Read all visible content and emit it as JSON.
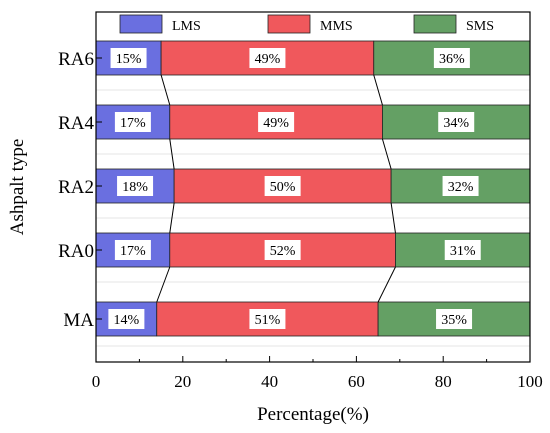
{
  "chart_data": {
    "type": "bar",
    "orientation": "horizontal",
    "stacked": true,
    "categories": [
      "MA",
      "RA0",
      "RA2",
      "RA4",
      "RA6"
    ],
    "series": [
      {
        "name": "LMS",
        "values": [
          14,
          17,
          18,
          17,
          15
        ],
        "labels": [
          "14%",
          "17%",
          "18%",
          "17%",
          "15%"
        ],
        "color": "#6a6fe0"
      },
      {
        "name": "MMS",
        "values": [
          51,
          52,
          50,
          49,
          49
        ],
        "labels": [
          "51%",
          "52%",
          "50%",
          "49%",
          "49%"
        ],
        "color": "#f0585c"
      },
      {
        "name": "SMS",
        "values": [
          35,
          31,
          32,
          34,
          36
        ],
        "labels": [
          "35%",
          "31%",
          "32%",
          "34%",
          "36%"
        ],
        "color": "#64a064"
      }
    ],
    "xlabel": "Percentage(%)",
    "ylabel": "Ashpalt type",
    "xlim": [
      0,
      100
    ],
    "xticks": [
      "0",
      "20",
      "40",
      "60",
      "80",
      "100"
    ],
    "grid": true,
    "legend": "top",
    "connector_lines": true
  }
}
